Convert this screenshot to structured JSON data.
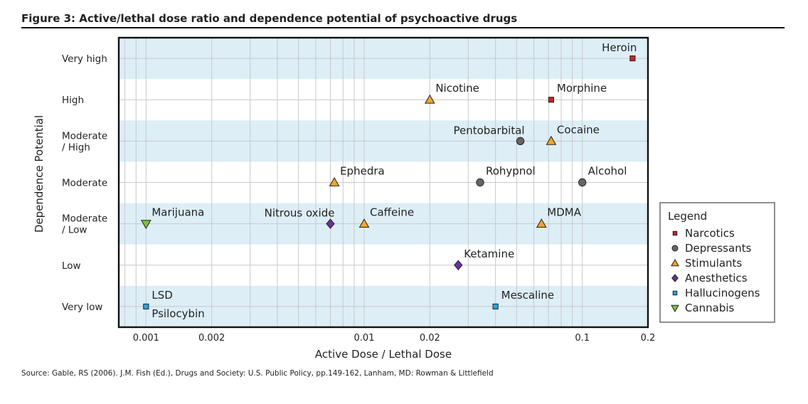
{
  "figure_title": "Figure 3: Active/lethal dose ratio and dependence potential of psychoactive drugs",
  "source": "Source: Gable, RS (2006). J.M. Fish (Ed.), Drugs and Society: U.S. Public Policy, pp.149-162, Lanham, MD: Rowman & Littlefield",
  "chart_data": {
    "type": "scatter",
    "title": "Active/lethal dose ratio and dependence potential of psychoactive drugs",
    "xlabel": "Active Dose / Lethal Dose",
    "ylabel": "Dependence Potential",
    "xscale": "log",
    "xlim": [
      0.00075,
      0.2
    ],
    "xticks": [
      {
        "value": 0.001,
        "label": "0.001"
      },
      {
        "value": 0.002,
        "label": "0.002"
      },
      {
        "value": 0.01,
        "label": "0.01"
      },
      {
        "value": 0.02,
        "label": "0.02"
      },
      {
        "value": 0.1,
        "label": "0.1"
      },
      {
        "value": 0.2,
        "label": "0.2"
      }
    ],
    "ylevels": [
      {
        "label": [
          "Very low"
        ],
        "band": true
      },
      {
        "label": [
          "Low"
        ],
        "band": false
      },
      {
        "label": [
          "Moderate",
          "/ Low"
        ],
        "band": true
      },
      {
        "label": [
          "Moderate"
        ],
        "band": false
      },
      {
        "label": [
          "Moderate",
          "/ High"
        ],
        "band": true
      },
      {
        "label": [
          "High"
        ],
        "band": false
      },
      {
        "label": [
          "Very high"
        ],
        "band": true
      }
    ],
    "grid": true,
    "legend_title": "Legend",
    "legend_position": "right",
    "categories": [
      {
        "name": "Narcotics",
        "marker": "square",
        "color": "#cc2222"
      },
      {
        "name": "Depressants",
        "marker": "circle",
        "color": "#666666"
      },
      {
        "name": "Stimulants",
        "marker": "triangle-up",
        "color": "#f2a52a"
      },
      {
        "name": "Anesthetics",
        "marker": "diamond",
        "color": "#6a2f9e"
      },
      {
        "name": "Hallucinogens",
        "marker": "square",
        "color": "#2aa5dd"
      },
      {
        "name": "Cannabis",
        "marker": "triangle-down",
        "color": "#7cc23a"
      }
    ],
    "points": [
      {
        "name": "Heroin",
        "category": "Narcotics",
        "x": 0.17,
        "level": 6,
        "label_pos": "above-left"
      },
      {
        "name": "Morphine",
        "category": "Narcotics",
        "x": 0.072,
        "level": 5,
        "label_pos": "above-right"
      },
      {
        "name": "Nicotine",
        "category": "Stimulants",
        "x": 0.02,
        "level": 5,
        "label_pos": "above-right"
      },
      {
        "name": "Pentobarbital",
        "category": "Depressants",
        "x": 0.052,
        "level": 4,
        "label_pos": "above-left"
      },
      {
        "name": "Cocaine",
        "category": "Stimulants",
        "x": 0.072,
        "level": 4,
        "label_pos": "above-right"
      },
      {
        "name": "Ephedra",
        "category": "Stimulants",
        "x": 0.0073,
        "level": 3,
        "label_pos": "above-right"
      },
      {
        "name": "Rohypnol",
        "category": "Depressants",
        "x": 0.034,
        "level": 3,
        "label_pos": "above-right"
      },
      {
        "name": "Alcohol",
        "category": "Depressants",
        "x": 0.1,
        "level": 3,
        "label_pos": "above-right"
      },
      {
        "name": "Marijuana",
        "category": "Cannabis",
        "x": 0.001,
        "level": 2,
        "label_pos": "above-right"
      },
      {
        "name": "Nitrous oxide",
        "category": "Anesthetics",
        "x": 0.007,
        "level": 2,
        "label_pos": "above-left"
      },
      {
        "name": "Caffeine",
        "category": "Stimulants",
        "x": 0.01,
        "level": 2,
        "label_pos": "above-right"
      },
      {
        "name": "MDMA",
        "category": "Stimulants",
        "x": 0.065,
        "level": 2,
        "label_pos": "above-right"
      },
      {
        "name": "Ketamine",
        "category": "Anesthetics",
        "x": 0.027,
        "level": 1,
        "label_pos": "above-right"
      },
      {
        "name": "LSD",
        "category": "Hallucinogens",
        "x": 0.001,
        "level": 0,
        "label_pos": "above-right"
      },
      {
        "name": "Psilocybin",
        "category": "Hallucinogens",
        "x": 0.001,
        "level": 0,
        "label_pos": "below-right"
      },
      {
        "name": "Mescaline",
        "category": "Hallucinogens",
        "x": 0.04,
        "level": 0,
        "label_pos": "above-right"
      }
    ]
  }
}
